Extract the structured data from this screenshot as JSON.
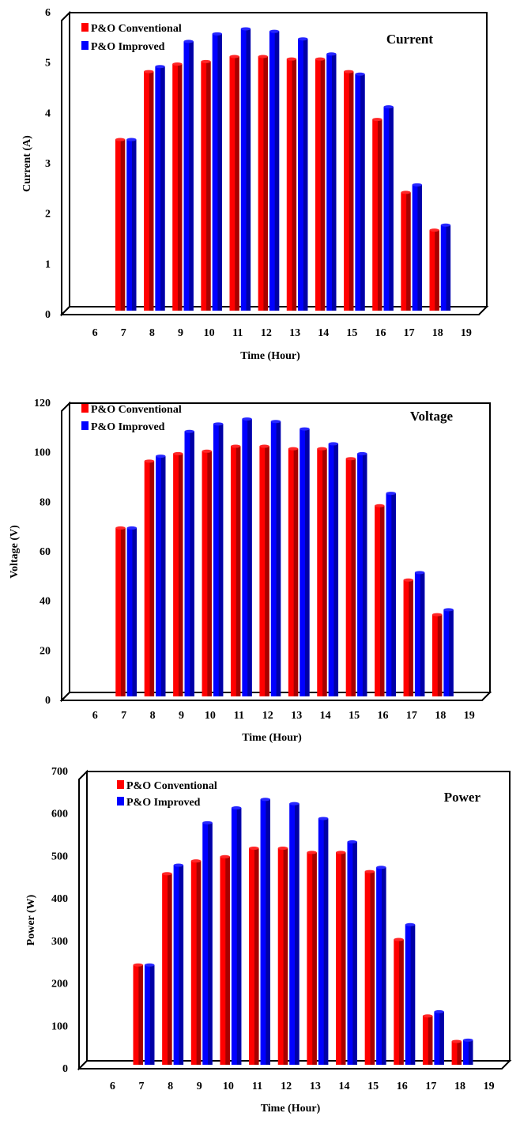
{
  "chart_data": [
    {
      "type": "bar",
      "title": "Current",
      "xlabel": "Time (Hour)",
      "ylabel": "Current (A)",
      "ylim": [
        0,
        6
      ],
      "yticks": [
        "0",
        "1",
        "2",
        "3",
        "4",
        "5",
        "6"
      ],
      "xticks": [
        "6",
        "7",
        "8",
        "9",
        "10",
        "11",
        "12",
        "13",
        "14",
        "15",
        "16",
        "17",
        "18",
        "19"
      ],
      "categories": [
        "7",
        "8",
        "9",
        "10",
        "11",
        "12",
        "13",
        "14",
        "15",
        "16",
        "17",
        "18"
      ],
      "legend_position": "top-left",
      "series": [
        {
          "name": "P&O Conventional",
          "color": "#ff0000",
          "values": [
            3.4,
            4.75,
            4.9,
            4.95,
            5.05,
            5.05,
            5.0,
            5.0,
            4.75,
            3.8,
            2.35,
            1.6
          ]
        },
        {
          "name": "P&O Improved",
          "color": "#0000ff",
          "values": [
            3.4,
            4.85,
            5.35,
            5.5,
            5.6,
            5.55,
            5.4,
            5.1,
            4.7,
            4.05,
            2.5,
            1.7
          ]
        }
      ]
    },
    {
      "type": "bar",
      "title": "Voltage",
      "xlabel": "Time (Hour)",
      "ylabel": "Voltage (V)",
      "ylim": [
        0,
        120
      ],
      "yticks": [
        "0",
        "20",
        "40",
        "60",
        "80",
        "100",
        "120"
      ],
      "xticks": [
        "6",
        "7",
        "8",
        "9",
        "10",
        "11",
        "12",
        "13",
        "14",
        "15",
        "16",
        "17",
        "18",
        "19"
      ],
      "categories": [
        "7",
        "8",
        "9",
        "10",
        "11",
        "12",
        "13",
        "14",
        "15",
        "16",
        "17",
        "18"
      ],
      "legend_position": "top-left",
      "series": [
        {
          "name": "P&O Conventional",
          "color": "#ff0000",
          "values": [
            68,
            95,
            98,
            99,
            101,
            101,
            100,
            100,
            96,
            77,
            47,
            33
          ]
        },
        {
          "name": "P&O Improved",
          "color": "#0000ff",
          "values": [
            68,
            97,
            107,
            110,
            112,
            111,
            108,
            102,
            98,
            82,
            50,
            35
          ]
        }
      ]
    },
    {
      "type": "bar",
      "title": "Power",
      "xlabel": "Time (Hour)",
      "ylabel": "Power (W)",
      "ylim": [
        0,
        700
      ],
      "yticks": [
        "0",
        "100",
        "200",
        "300",
        "400",
        "500",
        "600",
        "700"
      ],
      "xticks": [
        "6",
        "7",
        "8",
        "9",
        "10",
        "11",
        "12",
        "13",
        "14",
        "15",
        "16",
        "17",
        "18",
        "19"
      ],
      "categories": [
        "7",
        "8",
        "9",
        "10",
        "11",
        "12",
        "13",
        "14",
        "15",
        "16",
        "17",
        "18"
      ],
      "legend_position": "top-left",
      "series": [
        {
          "name": "P&O Conventional",
          "color": "#ff0000",
          "values": [
            235,
            450,
            480,
            490,
            510,
            510,
            500,
            500,
            455,
            295,
            115,
            55
          ]
        },
        {
          "name": "P&O Improved",
          "color": "#0000ff",
          "values": [
            235,
            470,
            570,
            605,
            625,
            615,
            580,
            525,
            465,
            330,
            125,
            58
          ]
        }
      ]
    }
  ]
}
